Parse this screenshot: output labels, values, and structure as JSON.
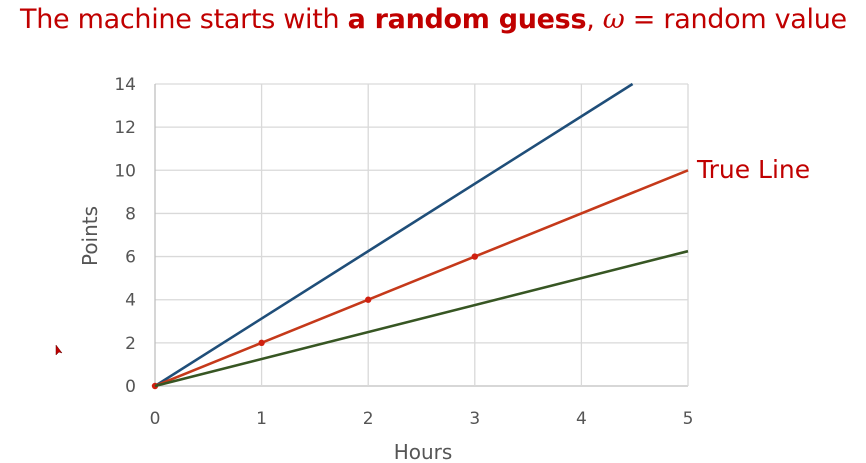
{
  "slide": {
    "title_part1": "The machine starts with ",
    "title_bold": "a random guess",
    "title_part2": ", ",
    "title_omega": "ω",
    "title_part3": " = random value"
  },
  "chart_data": {
    "type": "line",
    "xlabel": "Hours",
    "ylabel": "Points",
    "xlim": [
      0,
      5
    ],
    "ylim": [
      0,
      14
    ],
    "xticks": [
      0,
      1,
      2,
      3,
      4,
      5
    ],
    "yticks": [
      0,
      2,
      4,
      6,
      8,
      10,
      12,
      14
    ],
    "grid": true,
    "series": [
      {
        "color": "#1f4e79",
        "x": [
          0,
          4.48
        ],
        "y": [
          0,
          14
        ],
        "markers": false
      },
      {
        "name": "True Line",
        "color": "#c5391a",
        "x": [
          0,
          1,
          2,
          3,
          5
        ],
        "y": [
          0,
          2,
          4,
          6,
          10
        ],
        "markers": true,
        "marker_x": [
          0,
          1,
          2,
          3
        ]
      },
      {
        "color": "#375623",
        "x": [
          0,
          5
        ],
        "y": [
          0,
          6.25
        ],
        "markers": false
      }
    ],
    "annotation": {
      "text": "True Line",
      "color": "#c00000"
    }
  }
}
